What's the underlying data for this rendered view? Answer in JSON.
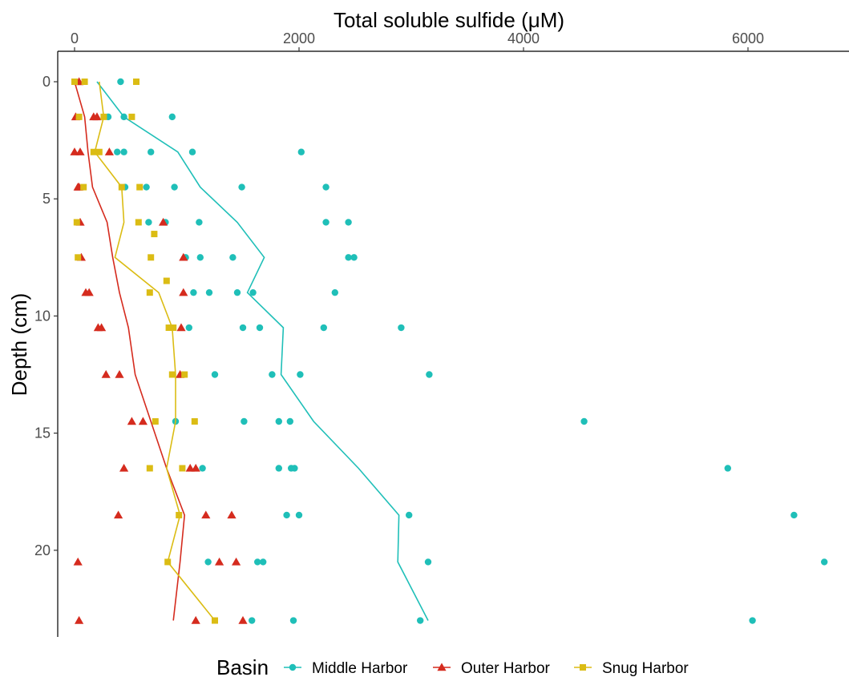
{
  "chart_data": {
    "type": "scatter",
    "title": "",
    "xlabel": "Total soluble sulfide (μM)",
    "ylabel": "Depth (cm)",
    "xlim": [
      -150,
      6900
    ],
    "ylim": [
      -1.3,
      23.7
    ],
    "y_reversed": true,
    "x_axis_position": "top",
    "grid": false,
    "x_ticks": [
      0,
      2000,
      4000,
      6000
    ],
    "x_tick_labels": [
      "0",
      "2000",
      "4000",
      "6000"
    ],
    "y_ticks": [
      0,
      5,
      10,
      15,
      20
    ],
    "y_tick_labels": [
      "0",
      "5",
      "10",
      "15",
      "20"
    ],
    "legend_title": "Basin",
    "legend_position": "bottom",
    "series": [
      {
        "name": "Middle Harbor",
        "color": "#1fbfb8",
        "marker": "circle",
        "points": [
          [
            410,
            0
          ],
          [
            870,
            1.5
          ],
          [
            440,
            1.5
          ],
          [
            300,
            1.5
          ],
          [
            1050,
            3
          ],
          [
            2020,
            3
          ],
          [
            680,
            3
          ],
          [
            440,
            3
          ],
          [
            380,
            3
          ],
          [
            1490,
            4.5
          ],
          [
            2240,
            4.5
          ],
          [
            890,
            4.5
          ],
          [
            640,
            4.5
          ],
          [
            450,
            4.5
          ],
          [
            2440,
            6
          ],
          [
            2240,
            6
          ],
          [
            1110,
            6
          ],
          [
            660,
            6
          ],
          [
            810,
            6
          ],
          [
            2490,
            7.5
          ],
          [
            2440,
            7.5
          ],
          [
            1410,
            7.5
          ],
          [
            1120,
            7.5
          ],
          [
            990,
            7.5
          ],
          [
            2320,
            9
          ],
          [
            1590,
            9
          ],
          [
            1450,
            9
          ],
          [
            1200,
            9
          ],
          [
            1060,
            9
          ],
          [
            2910,
            10.5
          ],
          [
            2220,
            10.5
          ],
          [
            1650,
            10.5
          ],
          [
            1500,
            10.5
          ],
          [
            1020,
            10.5
          ],
          [
            3160,
            12.5
          ],
          [
            2010,
            12.5
          ],
          [
            1760,
            12.5
          ],
          [
            1250,
            12.5
          ],
          [
            4540,
            14.5
          ],
          [
            1920,
            14.5
          ],
          [
            1820,
            14.5
          ],
          [
            1510,
            14.5
          ],
          [
            900,
            14.5
          ],
          [
            5820,
            16.5
          ],
          [
            1960,
            16.5
          ],
          [
            1930,
            16.5
          ],
          [
            1820,
            16.5
          ],
          [
            1140,
            16.5
          ],
          [
            6410,
            18.5
          ],
          [
            2980,
            18.5
          ],
          [
            2000,
            18.5
          ],
          [
            1890,
            18.5
          ],
          [
            6680,
            20.5
          ],
          [
            3150,
            20.5
          ],
          [
            1680,
            20.5
          ],
          [
            1630,
            20.5
          ],
          [
            1190,
            20.5
          ],
          [
            6040,
            23
          ],
          [
            3080,
            23
          ],
          [
            1950,
            23
          ],
          [
            1580,
            23
          ]
        ],
        "line": [
          [
            200,
            0
          ],
          [
            440,
            1.5
          ],
          [
            920,
            3
          ],
          [
            1120,
            4.5
          ],
          [
            1450,
            6
          ],
          [
            1690,
            7.5
          ],
          [
            1540,
            9
          ],
          [
            1860,
            10.5
          ],
          [
            1840,
            12.5
          ],
          [
            2130,
            14.5
          ],
          [
            2530,
            16.5
          ],
          [
            2890,
            18.5
          ],
          [
            2880,
            20.5
          ],
          [
            3150,
            23
          ]
        ]
      },
      {
        "name": "Outer Harbor",
        "color": "#d52b1e",
        "marker": "triangle",
        "points": [
          [
            40,
            0
          ],
          [
            10,
            1.5
          ],
          [
            170,
            1.5
          ],
          [
            200,
            1.5
          ],
          [
            0,
            3
          ],
          [
            50,
            3
          ],
          [
            310,
            3
          ],
          [
            40,
            4.5
          ],
          [
            30,
            4.5
          ],
          [
            50,
            6
          ],
          [
            790,
            6
          ],
          [
            60,
            7.5
          ],
          [
            970,
            7.5
          ],
          [
            100,
            9
          ],
          [
            130,
            9
          ],
          [
            970,
            9
          ],
          [
            210,
            10.5
          ],
          [
            240,
            10.5
          ],
          [
            950,
            10.5
          ],
          [
            280,
            12.5
          ],
          [
            400,
            12.5
          ],
          [
            940,
            12.5
          ],
          [
            510,
            14.5
          ],
          [
            610,
            14.5
          ],
          [
            1080,
            16.5
          ],
          [
            440,
            16.5
          ],
          [
            1030,
            16.5
          ],
          [
            390,
            18.5
          ],
          [
            1170,
            18.5
          ],
          [
            1400,
            18.5
          ],
          [
            30,
            20.5
          ],
          [
            1290,
            20.5
          ],
          [
            1440,
            20.5
          ],
          [
            40,
            23
          ],
          [
            1080,
            23
          ],
          [
            1500,
            23
          ]
        ],
        "line": [
          [
            0,
            0
          ],
          [
            90,
            1.5
          ],
          [
            120,
            3
          ],
          [
            160,
            4.5
          ],
          [
            290,
            6
          ],
          [
            340,
            7.5
          ],
          [
            400,
            9
          ],
          [
            480,
            10.5
          ],
          [
            540,
            12.5
          ],
          [
            680,
            14.5
          ],
          [
            820,
            16.5
          ],
          [
            980,
            18.5
          ],
          [
            940,
            20.5
          ],
          [
            880,
            23
          ]
        ]
      },
      {
        "name": "Snug Harbor",
        "color": "#dbbc14",
        "marker": "square",
        "points": [
          [
            0,
            0
          ],
          [
            90,
            0
          ],
          [
            550,
            0
          ],
          [
            40,
            1.5
          ],
          [
            260,
            1.5
          ],
          [
            510,
            1.5
          ],
          [
            170,
            3
          ],
          [
            220,
            3
          ],
          [
            420,
            4.5
          ],
          [
            80,
            4.5
          ],
          [
            580,
            4.5
          ],
          [
            20,
            6
          ],
          [
            570,
            6
          ],
          [
            710,
            6.5
          ],
          [
            30,
            7.5
          ],
          [
            680,
            7.5
          ],
          [
            820,
            8.5
          ],
          [
            670,
            9
          ],
          [
            840,
            10.5
          ],
          [
            880,
            10.5
          ],
          [
            870,
            12.5
          ],
          [
            980,
            12.5
          ],
          [
            720,
            14.5
          ],
          [
            1070,
            14.5
          ],
          [
            670,
            16.5
          ],
          [
            960,
            16.5
          ],
          [
            930,
            18.5
          ],
          [
            830,
            20.5
          ],
          [
            1250,
            23
          ]
        ],
        "line": [
          [
            220,
            0
          ],
          [
            260,
            1.5
          ],
          [
            180,
            3
          ],
          [
            420,
            4.5
          ],
          [
            440,
            6
          ],
          [
            360,
            7.5
          ],
          [
            750,
            9
          ],
          [
            870,
            10.5
          ],
          [
            900,
            12.5
          ],
          [
            900,
            14.5
          ],
          [
            820,
            16.5
          ],
          [
            940,
            18.5
          ],
          [
            830,
            20.5
          ],
          [
            1250,
            23
          ]
        ]
      }
    ]
  }
}
